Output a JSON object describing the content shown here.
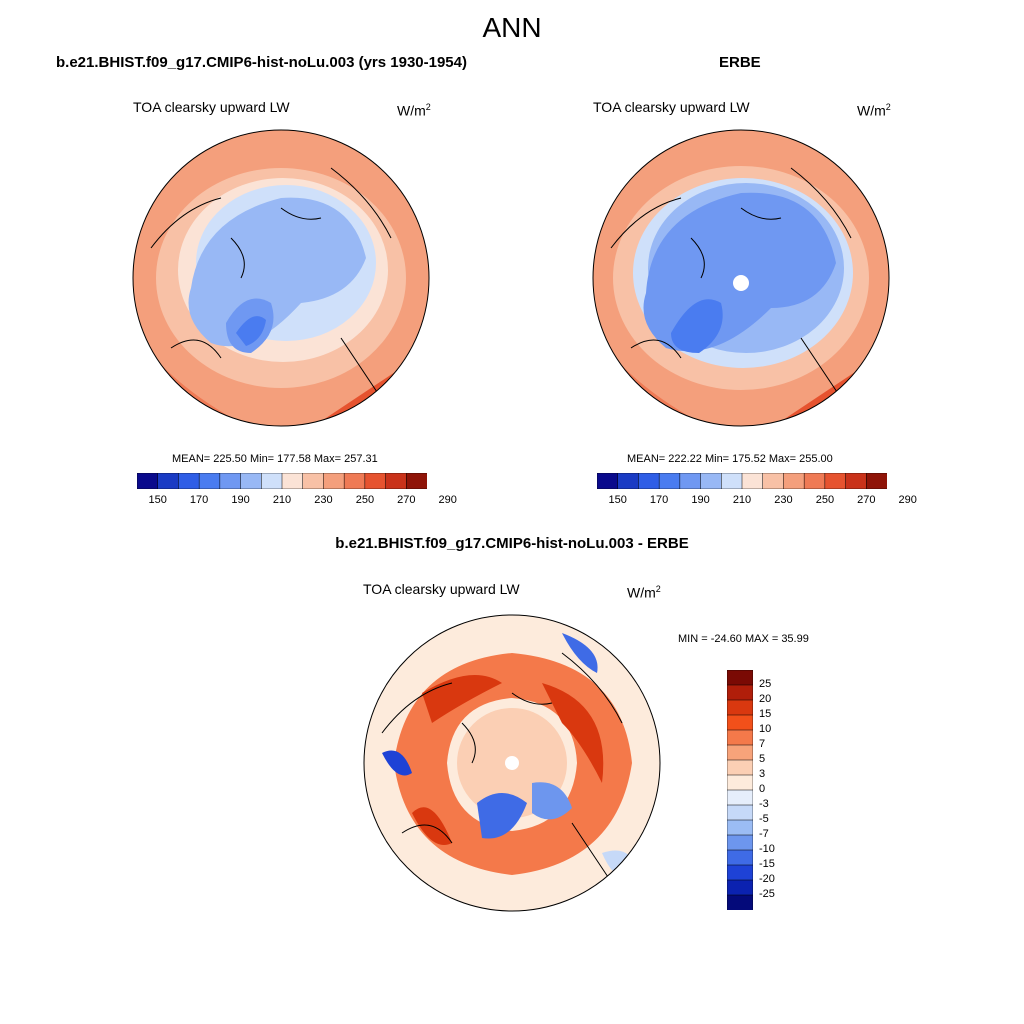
{
  "page": {
    "title": "ANN"
  },
  "panels": [
    {
      "case_title": "b.e21.BHIST.f09_g17.CMIP6-hist-noLu.003 (yrs 1930-1954)",
      "variable": "TOA clearsky upward LW",
      "units": "W/m",
      "units_sup": "2",
      "stats": "MEAN= 225.50  Min= 177.58  Max= 257.31",
      "colorbar": {
        "colors": [
          "#0a0a8c",
          "#1a3bc4",
          "#2f5ee6",
          "#4a7cf0",
          "#6f98f2",
          "#98b8f5",
          "#cfe0fa",
          "#fbe3d6",
          "#f8c1a6",
          "#f49f7c",
          "#ef7a55",
          "#e6532f",
          "#c9321a",
          "#8f1408"
        ],
        "tick_labels": [
          "150",
          "170",
          "190",
          "210",
          "230",
          "250",
          "270",
          "290"
        ]
      }
    },
    {
      "case_title": "ERBE",
      "variable": "TOA clearsky upward LW",
      "units": "W/m",
      "units_sup": "2",
      "stats": "MEAN= 222.22  Min= 175.52  Max= 255.00",
      "colorbar": {
        "colors": [
          "#0a0a8c",
          "#1a3bc4",
          "#2f5ee6",
          "#4a7cf0",
          "#6f98f2",
          "#98b8f5",
          "#cfe0fa",
          "#fbe3d6",
          "#f8c1a6",
          "#f49f7c",
          "#ef7a55",
          "#e6532f",
          "#c9321a",
          "#8f1408"
        ],
        "tick_labels": [
          "150",
          "170",
          "190",
          "210",
          "230",
          "250",
          "270",
          "290"
        ]
      }
    }
  ],
  "diff_panel": {
    "case_title": "b.e21.BHIST.f09_g17.CMIP6-hist-noLu.003 - ERBE",
    "variable": "TOA clearsky upward LW",
    "units": "W/m",
    "units_sup": "2",
    "stats": "MIN = -24.60 MAX =  35.99",
    "colorbar": {
      "colors": [
        "#7a0a04",
        "#b01e0a",
        "#d9380f",
        "#f2501a",
        "#f4794a",
        "#f7a37a",
        "#fbcfb4",
        "#fdebdc",
        "#e6eefb",
        "#c6d9f8",
        "#9bbcf4",
        "#6d96ee",
        "#3f6be6",
        "#1e42d6",
        "#0b22b0",
        "#040a7a"
      ],
      "tick_labels": [
        "25",
        "20",
        "15",
        "10",
        "7",
        "5",
        "3",
        "0",
        "-3",
        "-5",
        "-7",
        "-10",
        "-15",
        "-20",
        "-25"
      ]
    }
  }
}
